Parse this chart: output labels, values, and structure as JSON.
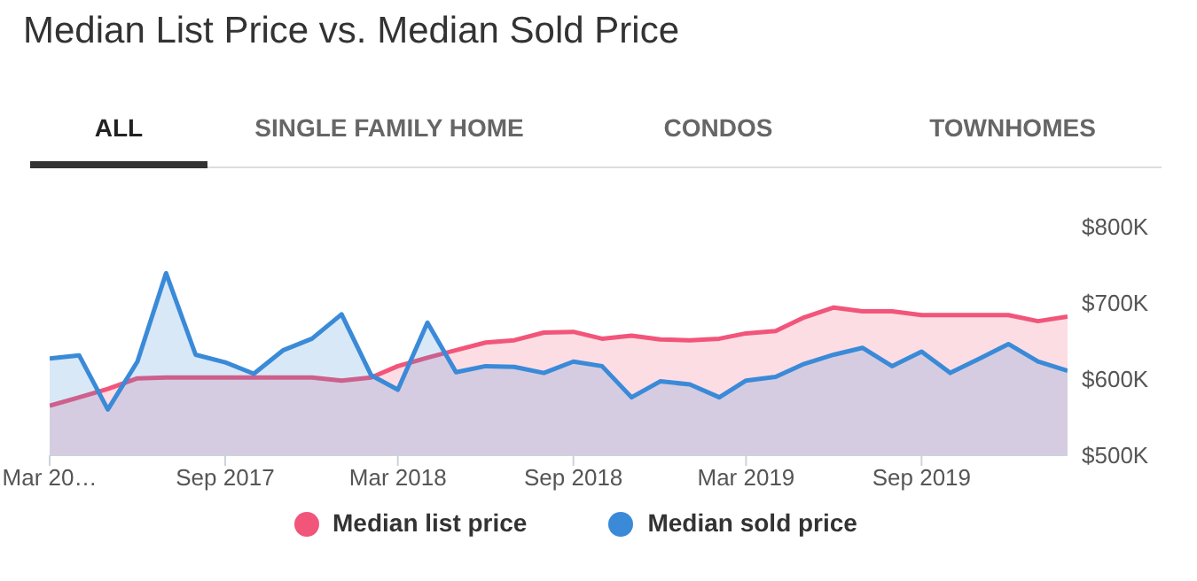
{
  "chart_data": {
    "type": "area",
    "title": "Median List Price vs. Median Sold Price",
    "annotations": [
      "ALL",
      "SINGLE FAMILY HOME",
      "CONDOS",
      "TOWNHOMES"
    ],
    "x": [
      "2017-03",
      "2017-04",
      "2017-05",
      "2017-06",
      "2017-07",
      "2017-08",
      "2017-09",
      "2017-10",
      "2017-11",
      "2017-12",
      "2018-01",
      "2018-02",
      "2018-03",
      "2018-04",
      "2018-05",
      "2018-06",
      "2018-07",
      "2018-08",
      "2018-09",
      "2018-10",
      "2018-11",
      "2018-12",
      "2019-01",
      "2019-02",
      "2019-03",
      "2019-04",
      "2019-05",
      "2019-06",
      "2019-07",
      "2019-08",
      "2019-09",
      "2019-10",
      "2019-11",
      "2019-12",
      "2020-01",
      "2020-02"
    ],
    "series": [
      {
        "name": "Median list price",
        "color": "#f2557a",
        "values": [
          565000,
          576000,
          587000,
          601000,
          602000,
          602000,
          602000,
          602000,
          602000,
          602000,
          598000,
          602000,
          617000,
          628000,
          638000,
          648000,
          651000,
          661000,
          662000,
          653000,
          657000,
          652000,
          651000,
          653000,
          660000,
          663000,
          681000,
          694000,
          689000,
          689000,
          684000,
          684000,
          684000,
          684000,
          676000,
          682000
        ]
      },
      {
        "name": "Median sold price",
        "color": "#3a8ad8",
        "values": [
          627000,
          631000,
          560000,
          623000,
          739000,
          632000,
          622000,
          607000,
          638000,
          653000,
          685000,
          605000,
          586000,
          674000,
          609000,
          617000,
          616000,
          608000,
          623000,
          617000,
          576000,
          597000,
          593000,
          576000,
          598000,
          603000,
          620000,
          632000,
          641000,
          617000,
          636000,
          608000,
          627000,
          646000,
          623000,
          611000
        ]
      }
    ],
    "ylim": [
      500000,
      800000
    ],
    "yticks": [
      {
        "value": 500000,
        "label": "$500K"
      },
      {
        "value": 600000,
        "label": "$600K"
      },
      {
        "value": 700000,
        "label": "$700K"
      },
      {
        "value": 800000,
        "label": "$800K"
      }
    ],
    "xlim": [
      "2017-03",
      "2020-02"
    ],
    "xticks": [
      {
        "value": "2017-03",
        "label": "Mar 20…"
      },
      {
        "value": "2017-09",
        "label": "Sep 2017"
      },
      {
        "value": "2018-03",
        "label": "Mar 2018"
      },
      {
        "value": "2018-09",
        "label": "Sep 2018"
      },
      {
        "value": "2019-03",
        "label": "Mar 2019"
      },
      {
        "value": "2019-09",
        "label": "Sep 2019"
      }
    ],
    "grid": false,
    "legend": "bottom",
    "marker": "none",
    "line_style": "solid"
  }
}
